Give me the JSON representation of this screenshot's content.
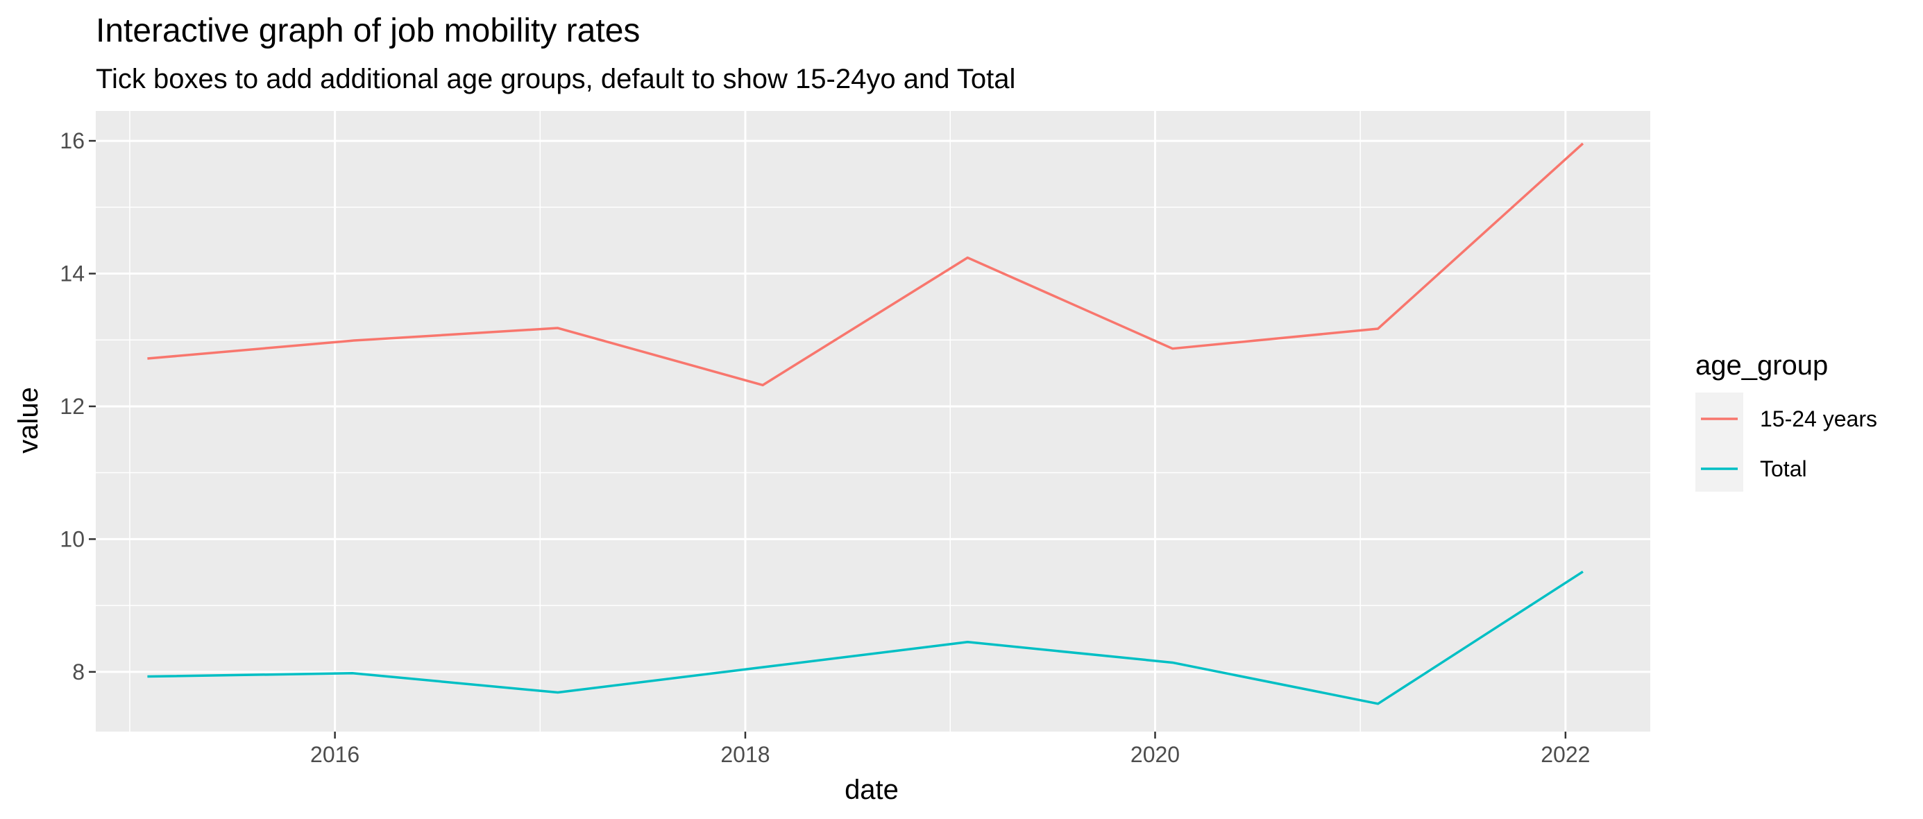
{
  "chart_data": {
    "type": "line",
    "title": "Interactive graph of job mobility rates",
    "subtitle": "Tick boxes to add additional age groups, default to show 15-24yo and Total",
    "xlabel": "date",
    "ylabel": "value",
    "x_axis_type": "date",
    "xlim": [
      "2014-11-01",
      "2022-06-01"
    ],
    "ylim": [
      7.1,
      16.45
    ],
    "x_ticks": [
      "2016",
      "2018",
      "2020",
      "2022"
    ],
    "x_tick_dates": [
      "2016-01-01",
      "2018-01-01",
      "2020-01-01",
      "2022-01-01"
    ],
    "y_ticks": [
      8,
      10,
      12,
      14,
      16
    ],
    "grid": true,
    "legend_title": "age_group",
    "legend_position": "right",
    "x": [
      "2015-02-01",
      "2016-02-01",
      "2017-02-01",
      "2018-02-01",
      "2019-02-01",
      "2020-02-01",
      "2021-02-01",
      "2022-02-01"
    ],
    "series": [
      {
        "name": "15-24 years",
        "color": "#F8766D",
        "values": [
          12.72,
          12.99,
          13.18,
          12.32,
          14.24,
          12.87,
          13.17,
          15.96
        ]
      },
      {
        "name": "Total",
        "color": "#00BFC4",
        "values": [
          7.93,
          7.98,
          7.69,
          8.07,
          8.45,
          8.14,
          7.52,
          9.51
        ]
      }
    ]
  }
}
